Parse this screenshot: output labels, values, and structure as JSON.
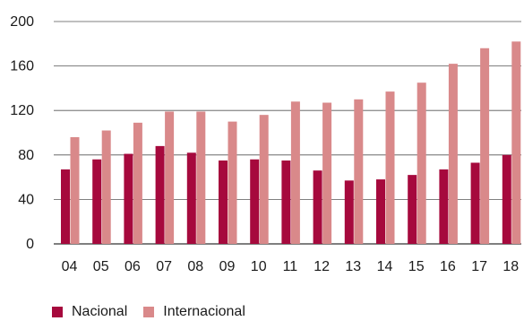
{
  "chart_data": {
    "type": "bar",
    "categories": [
      "04",
      "05",
      "06",
      "07",
      "08",
      "09",
      "10",
      "11",
      "12",
      "13",
      "14",
      "15",
      "16",
      "17",
      "18"
    ],
    "series": [
      {
        "name": "Nacional",
        "color": "#a6093d",
        "values": [
          67,
          76,
          81,
          88,
          82,
          75,
          76,
          75,
          66,
          57,
          58,
          62,
          67,
          73,
          80
        ]
      },
      {
        "name": "Internacional",
        "color": "#d9898a",
        "values": [
          96,
          102,
          109,
          119,
          119,
          110,
          116,
          128,
          127,
          130,
          137,
          145,
          162,
          176,
          182
        ]
      }
    ],
    "yticks": [
      0,
      40,
      80,
      120,
      160,
      200
    ],
    "ylim": [
      0,
      200
    ],
    "grid": true,
    "legend_position": "bottom-left"
  }
}
